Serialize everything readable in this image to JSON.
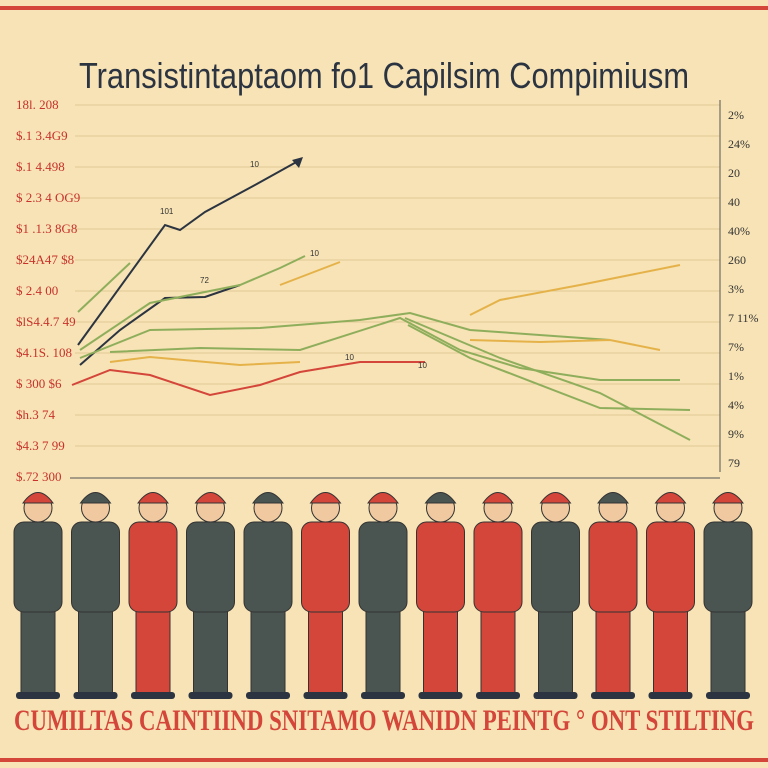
{
  "title": "Transistintaptaom fo1 Capilsim Compimiusm",
  "left_labels": [
    "18l. 208",
    "$.1 3.4G9",
    "$.1 4.498",
    "$ 2.3 4 OG9",
    "$1 .1.3 8G8",
    "$24A47 $8",
    "$ 2.4 00",
    "$lS4.4.7 49",
    "$4.1S. 108",
    "$ 300 $6",
    "$h.3 74",
    "$4.3 7 99",
    "$.72 300"
  ],
  "right_labels": [
    "2%",
    "24%",
    "20",
    "40",
    "40%",
    "260",
    "3%",
    "7 11%",
    "7%",
    "1%",
    "4%",
    "9%",
    "79"
  ],
  "annotations": [
    "10",
    "101",
    "72",
    "10",
    "10",
    "10"
  ],
  "caption": "CUMILTAS CAINTIIND SNITAMO WANIDN PEINTG ° ONT STILTING"
}
